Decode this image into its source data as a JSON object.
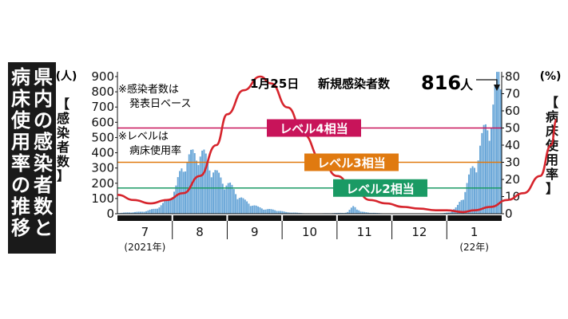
{
  "title": {
    "col1": "県内の感染者数と",
    "col2": "病床使用率の推移"
  },
  "left_axis": {
    "unit": "(人)",
    "label": "【感染者数】"
  },
  "right_axis": {
    "unit": "(%)",
    "label": "【病床使用率】"
  },
  "notes": {
    "note1_l1": "※感染者数は",
    "note1_l2": "発表日ベース",
    "note2_l1": "※レベルは",
    "note2_l2": "病床使用率"
  },
  "headline": {
    "date": "1月25日",
    "text": "新規感染者数",
    "value": "816",
    "unit": "人"
  },
  "colors": {
    "bars": "#6aa7d8",
    "line": "#d6242c",
    "level4": "#c8145a",
    "level3": "#e07a10",
    "level2": "#1a9a64"
  },
  "chart_data": {
    "type": "bar+line",
    "series": [
      {
        "name": "感染者数",
        "axis": "left",
        "type": "bar",
        "monthly_profile": [
          {
            "month": "7",
            "values": [
              5,
              8,
              10,
              12,
              20,
              30,
              55,
              90
            ]
          },
          {
            "month": "8",
            "values": [
              150,
              300,
              340,
              380,
              360,
              300,
              240,
              200
            ]
          },
          {
            "month": "9",
            "values": [
              170,
              120,
              80,
              60,
              40,
              30,
              25,
              20
            ]
          },
          {
            "month": "10",
            "values": [
              10,
              8,
              5,
              3,
              2,
              2,
              3,
              4
            ]
          },
          {
            "month": "11",
            "values": [
              5,
              7,
              50,
              12,
              8,
              5,
              3,
              2
            ]
          },
          {
            "month": "12",
            "values": [
              1,
              1,
              1,
              1,
              1,
              1,
              2,
              3
            ]
          },
          {
            "month": "1",
            "values": [
              10,
              40,
              120,
              250,
              350,
              500,
              600,
              816
            ]
          }
        ]
      },
      {
        "name": "病床使用率",
        "axis": "right",
        "type": "line",
        "points": [
          [
            0.0,
            11
          ],
          [
            0.3,
            8
          ],
          [
            0.6,
            6
          ],
          [
            0.9,
            8
          ],
          [
            1.2,
            12
          ],
          [
            1.5,
            22
          ],
          [
            1.8,
            40
          ],
          [
            2.0,
            58
          ],
          [
            2.3,
            72
          ],
          [
            2.6,
            80
          ],
          [
            2.8,
            76
          ],
          [
            3.1,
            62
          ],
          [
            3.4,
            46
          ],
          [
            3.7,
            32
          ],
          [
            4.0,
            22
          ],
          [
            4.3,
            15
          ],
          [
            4.6,
            8
          ],
          [
            4.9,
            6
          ],
          [
            5.2,
            4
          ],
          [
            5.5,
            3
          ],
          [
            5.8,
            2
          ],
          [
            6.0,
            2
          ],
          [
            6.3,
            1
          ],
          [
            6.5,
            2
          ],
          [
            6.8,
            4
          ],
          [
            7.1,
            8
          ],
          [
            7.4,
            12
          ],
          [
            7.7,
            22
          ],
          [
            7.9,
            40
          ],
          [
            8.0,
            55
          ]
        ]
      }
    ],
    "months": [
      "7",
      "8",
      "9",
      "10",
      "11",
      "12",
      "1"
    ],
    "x_labels_sub": {
      "first": "(2021年)",
      "last": "(22年)"
    },
    "left_ticks": [
      "900",
      "800",
      "700",
      "600",
      "500",
      "400",
      "300",
      "200",
      "100",
      "0"
    ],
    "right_ticks": [
      "80",
      "70",
      "60",
      "50",
      "40",
      "30",
      "20",
      "10",
      "0"
    ],
    "left_range": [
      0,
      900
    ],
    "right_range": [
      0,
      80
    ],
    "levels": [
      {
        "name": "レベル4相当",
        "value": 50,
        "color": "#c8145a"
      },
      {
        "name": "レベル3相当",
        "value": 30,
        "color": "#e07a10"
      },
      {
        "name": "レベル2相当",
        "value": 15,
        "color": "#1a9a64"
      }
    ]
  }
}
